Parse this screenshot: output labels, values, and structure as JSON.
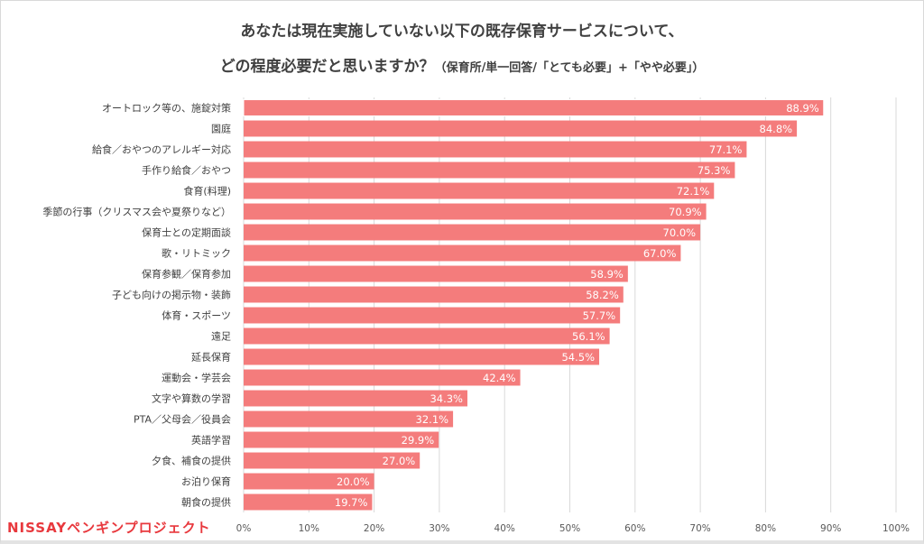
{
  "colors": {
    "bar": "#f47c7c",
    "grid": "#d9d9d9",
    "logo": "#e8383d",
    "text": "#404040"
  },
  "logo": {
    "text": "NISSAYペンギンプロジェクト"
  },
  "chart_data": {
    "type": "bar",
    "orientation": "horizontal",
    "title": "あなたは現在実施していない以下の既存保育サービスについて、",
    "subtitle_main": "どの程度必要だと思いますか？",
    "subtitle_note": "（保育所/単一回答/「とても必要」+「やや必要」）",
    "xlabel": "",
    "ylabel": "",
    "xlim": [
      0,
      100
    ],
    "x_ticks": [
      "0%",
      "10%",
      "20%",
      "30%",
      "40%",
      "50%",
      "60%",
      "70%",
      "80%",
      "90%",
      "100%"
    ],
    "grid": true,
    "legend": "none",
    "categories": [
      "オートロック等の、施錠対策",
      "園庭",
      "給食／おやつのアレルギー対応",
      "手作り給食／おやつ",
      "食育(料理)",
      "季節の行事（クリスマス会や夏祭りなど）",
      "保育士との定期面談",
      "歌・リトミック",
      "保育参観／保育参加",
      "子ども向けの掲示物・装飾",
      "体育・スポーツ",
      "遠足",
      "延長保育",
      "運動会・学芸会",
      "文字や算数の学習",
      "PTA／父母会／役員会",
      "英語学習",
      "夕食、補食の提供",
      "お泊り保育",
      "朝食の提供"
    ],
    "values": [
      88.9,
      84.8,
      77.1,
      75.3,
      72.1,
      70.9,
      70.0,
      67.0,
      58.9,
      58.2,
      57.7,
      56.1,
      54.5,
      42.4,
      34.3,
      32.1,
      29.9,
      27.0,
      20.0,
      19.7
    ],
    "value_labels": [
      "88.9%",
      "84.8%",
      "77.1%",
      "75.3%",
      "72.1%",
      "70.9%",
      "70.0%",
      "67.0%",
      "58.9%",
      "58.2%",
      "57.7%",
      "56.1%",
      "54.5%",
      "42.4%",
      "34.3%",
      "32.1%",
      "29.9%",
      "27.0%",
      "20.0%",
      "19.7%"
    ]
  }
}
